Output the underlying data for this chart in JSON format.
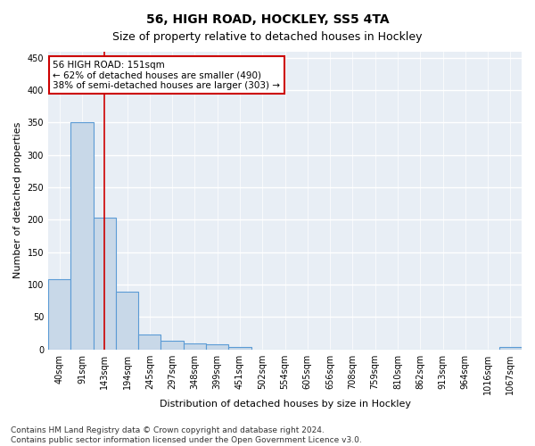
{
  "title": "56, HIGH ROAD, HOCKLEY, SS5 4TA",
  "subtitle": "Size of property relative to detached houses in Hockley",
  "xlabel": "Distribution of detached houses by size in Hockley",
  "ylabel": "Number of detached properties",
  "bar_color": "#c8d8e8",
  "bar_edge_color": "#5b9bd5",
  "vertical_line_color": "#cc0000",
  "annotation_text": "56 HIGH ROAD: 151sqm\n← 62% of detached houses are smaller (490)\n38% of semi-detached houses are larger (303) →",
  "annotation_box_color": "#ffffff",
  "annotation_box_edge_color": "#cc0000",
  "categories": [
    "40sqm",
    "91sqm",
    "143sqm",
    "194sqm",
    "245sqm",
    "297sqm",
    "348sqm",
    "399sqm",
    "451sqm",
    "502sqm",
    "554sqm",
    "605sqm",
    "656sqm",
    "708sqm",
    "759sqm",
    "810sqm",
    "862sqm",
    "913sqm",
    "964sqm",
    "1016sqm",
    "1067sqm"
  ],
  "values": [
    108,
    350,
    203,
    89,
    23,
    14,
    9,
    8,
    4,
    0,
    0,
    0,
    0,
    0,
    0,
    0,
    0,
    0,
    0,
    0,
    4
  ],
  "vline_index": 2,
  "ylim": [
    0,
    460
  ],
  "yticks": [
    0,
    50,
    100,
    150,
    200,
    250,
    300,
    350,
    400,
    450
  ],
  "background_color": "#e8eef5",
  "grid_color": "#ffffff",
  "footer_line1": "Contains HM Land Registry data © Crown copyright and database right 2024.",
  "footer_line2": "Contains public sector information licensed under the Open Government Licence v3.0.",
  "title_fontsize": 10,
  "subtitle_fontsize": 9,
  "axis_label_fontsize": 8,
  "tick_fontsize": 7,
  "annotation_fontsize": 7.5,
  "footer_fontsize": 6.5
}
